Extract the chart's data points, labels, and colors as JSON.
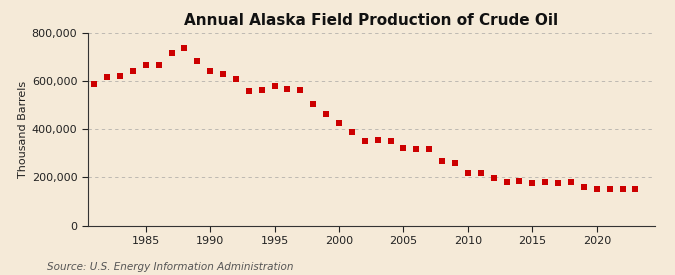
{
  "title": "Annual Alaska Field Production of Crude Oil",
  "ylabel": "Thousand Barrels",
  "source": "Source: U.S. Energy Information Administration",
  "background_color": "#f5ead8",
  "marker_color": "#cc0000",
  "grid_color": "#999999",
  "years": [
    1981,
    1982,
    1983,
    1984,
    1985,
    1986,
    1987,
    1988,
    1989,
    1990,
    1991,
    1992,
    1993,
    1994,
    1995,
    1996,
    1997,
    1998,
    1999,
    2000,
    2001,
    2002,
    2003,
    2004,
    2005,
    2006,
    2007,
    2008,
    2009,
    2010,
    2011,
    2012,
    2013,
    2014,
    2015,
    2016,
    2017,
    2018,
    2019,
    2020,
    2021,
    2022,
    2023
  ],
  "values": [
    587970,
    617700,
    619491,
    641682,
    665079,
    665070,
    716400,
    738158,
    682636,
    641853,
    630681,
    609731,
    560714,
    563696,
    578095,
    567800,
    563600,
    505600,
    465400,
    425700,
    386600,
    352100,
    356100,
    350400,
    322400,
    316700,
    319300,
    268000,
    261400,
    219000,
    218700,
    197400,
    182600,
    185900,
    175900,
    181600,
    175800,
    182400,
    162000,
    151900,
    153600,
    153500,
    153000
  ],
  "xlim": [
    1980.5,
    2024.5
  ],
  "ylim": [
    0,
    800000
  ],
  "yticks": [
    0,
    200000,
    400000,
    600000,
    800000
  ],
  "xticks": [
    1985,
    1990,
    1995,
    2000,
    2005,
    2010,
    2015,
    2020
  ],
  "title_fontsize": 11,
  "axis_fontsize": 8,
  "source_fontsize": 7.5,
  "marker_size": 14
}
